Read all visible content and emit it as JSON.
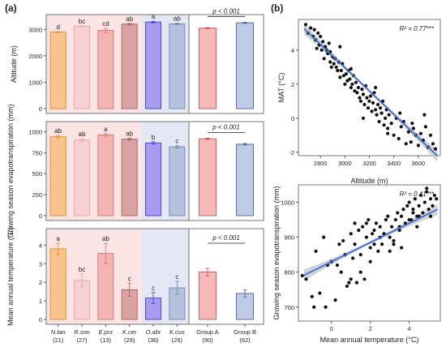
{
  "panel_labels": {
    "a": "(a)",
    "b": "(b)"
  },
  "colors": {
    "bg_red": "#fbe4e4",
    "bg_blue": "#e4e7f4",
    "bar_fills": [
      "#f9c38e",
      "#f8d0d0",
      "#f3b5b2",
      "#d9a3a3",
      "#a99af2",
      "#b5c2dc",
      "#f6b8b8",
      "#c0cbe8"
    ],
    "bar_strokes": [
      "#e08a2a",
      "#e6a3a3",
      "#d27270",
      "#a85a5a",
      "#4a36d6",
      "#6f85ad",
      "#d05050",
      "#4c62a3"
    ],
    "regression_line": "#3d6fd4",
    "ci_band": "#c8c8c8"
  },
  "chart_data": [
    {
      "type": "bar",
      "ylabel": "Altitude (m)",
      "categories": [
        "N.tan",
        "R.son",
        "E.prz",
        "K.cer",
        "O.abr",
        "K.cus",
        "Group A",
        "Group B"
      ],
      "values": [
        2900,
        3120,
        2960,
        3200,
        3280,
        3210,
        3050,
        3250
      ],
      "errors": [
        15,
        15,
        80,
        30,
        30,
        30,
        20,
        25
      ],
      "letters": [
        "d",
        "bc",
        "cd",
        "ab",
        "a",
        "ab",
        "",
        ""
      ],
      "ylim": [
        0,
        3500
      ],
      "yticks": [
        "0",
        "1000",
        "2000",
        "3000"
      ],
      "ytick_values": [
        0,
        1000,
        2000,
        3000
      ],
      "pvalue": "p < 0.001"
    },
    {
      "type": "bar",
      "ylabel": "Growing season evapotranspiration (mm)",
      "categories": [
        "N.tan",
        "R.son",
        "E.prz",
        "K.cer",
        "O.abr",
        "K.cus",
        "Group A",
        "Group B"
      ],
      "values": [
        940,
        900,
        960,
        910,
        865,
        820,
        915,
        850
      ],
      "errors": [
        15,
        15,
        15,
        12,
        15,
        15,
        8,
        10
      ],
      "letters": [
        "ab",
        "ab",
        "a",
        "ab",
        "b",
        "c",
        "",
        ""
      ],
      "ylim": [
        0,
        1100
      ],
      "yticks": [
        "0",
        "250",
        "500",
        "750",
        "1000"
      ],
      "ytick_values": [
        0,
        250,
        500,
        750,
        1000
      ],
      "pvalue": "p < 0.001"
    },
    {
      "type": "bar",
      "ylabel": "Mean annual temperature (°C)",
      "categories": [
        "N.tan",
        "R.son",
        "E.prz",
        "K.cer",
        "O.abr",
        "K.cus",
        "Group A",
        "Group B"
      ],
      "values": [
        3.8,
        2.1,
        3.55,
        1.6,
        1.15,
        1.7,
        2.55,
        1.4
      ],
      "errors": [
        0.3,
        0.35,
        0.55,
        0.35,
        0.3,
        0.35,
        0.2,
        0.2
      ],
      "letters": [
        "a",
        "bc",
        "ab",
        "c",
        "c",
        "c",
        "",
        ""
      ],
      "ylim": [
        0,
        4.8
      ],
      "yticks": [
        "0",
        "1",
        "2",
        "3",
        "4"
      ],
      "ytick_values": [
        0,
        1,
        2,
        3,
        4
      ],
      "pvalue": "p < 0.001",
      "xlabels": [
        {
          "name": "N.tan",
          "n": "(21)"
        },
        {
          "name": "R.son",
          "n": "(27)"
        },
        {
          "name": "E.prz",
          "n": "(13)"
        },
        {
          "name": "K.cer",
          "n": "(29)"
        },
        {
          "name": "O.abr",
          "n": "(36)"
        },
        {
          "name": "K.cus",
          "n": "(26)"
        },
        {
          "name": "Group A",
          "n": "(90)"
        },
        {
          "name": "Group B",
          "n": "(62)"
        }
      ]
    },
    {
      "type": "scatter",
      "xlabel": "Altitude (m)",
      "ylabel": "MAT (°C)",
      "r2": "R² = 0.77***",
      "xlim": [
        2620,
        3780
      ],
      "ylim": [
        -2.2,
        5.8
      ],
      "xticks": [
        "2800",
        "3000",
        "3200",
        "3400",
        "3600"
      ],
      "xtick_values": [
        2800,
        3000,
        3200,
        3400,
        3600
      ],
      "yticks": [
        "-2",
        "0",
        "2",
        "4"
      ],
      "ytick_values": [
        -2,
        0,
        2,
        4
      ],
      "fit": {
        "slope": -0.00686,
        "intercept": 23.55
      },
      "x": [
        2680,
        2700,
        2720,
        2740,
        2750,
        2760,
        2780,
        2790,
        2800,
        2810,
        2820,
        2830,
        2840,
        2850,
        2860,
        2870,
        2880,
        2890,
        2900,
        2910,
        2920,
        2930,
        2940,
        2950,
        2960,
        2970,
        2980,
        2990,
        3000,
        3010,
        3020,
        3030,
        3040,
        3050,
        3060,
        3070,
        3080,
        3090,
        3100,
        3110,
        3120,
        3130,
        3140,
        3150,
        3160,
        3170,
        3180,
        3190,
        3200,
        3210,
        3220,
        3230,
        3240,
        3250,
        3260,
        3270,
        3280,
        3290,
        3300,
        3310,
        3320,
        3330,
        3340,
        3350,
        3360,
        3380,
        3400,
        3420,
        3440,
        3460,
        3480,
        3500,
        3520,
        3540,
        3560,
        3580,
        3600,
        3620,
        3640,
        3660,
        3680,
        3700,
        3720,
        3740,
        2770,
        2880,
        2960,
        3050,
        3150,
        3250,
        3350,
        3450,
        3550,
        3650
      ],
      "y": [
        5.5,
        5.0,
        5.3,
        4.8,
        5.2,
        4.6,
        5.0,
        4.3,
        4.8,
        4.0,
        4.5,
        3.5,
        4.2,
        4.0,
        3.8,
        4.4,
        3.9,
        3.0,
        3.6,
        3.2,
        3.5,
        3.0,
        2.8,
        3.3,
        2.4,
        2.8,
        3.2,
        2.5,
        2.0,
        2.6,
        2.2,
        2.8,
        2.3,
        1.8,
        2.0,
        2.5,
        1.6,
        2.1,
        1.5,
        1.8,
        1.2,
        1.0,
        1.7,
        1.4,
        0.8,
        1.9,
        1.2,
        0.6,
        1.0,
        1.3,
        0.4,
        0.9,
        1.5,
        0.5,
        0.2,
        0.8,
        -0.2,
        0.6,
        0.3,
        1.0,
        -0.4,
        0.0,
        0.5,
        -0.6,
        0.2,
        -0.3,
        -1.0,
        0.0,
        -1.2,
        -0.5,
        -0.2,
        -1.5,
        -0.8,
        -1.4,
        -0.6,
        -1.0,
        -1.6,
        -0.9,
        -1.3,
        -0.5,
        -1.7,
        -1.0,
        -1.5,
        -1.8,
        4.1,
        3.3,
        4.2,
        2.9,
        0.0,
        1.8,
        -0.9,
        0.3,
        -0.3,
        0.2
      ]
    },
    {
      "type": "scatter",
      "xlabel": "Mean annual temperature (°C)",
      "ylabel": "Growing season evapotranspiration (mm)",
      "r2": "R² = 0.41***",
      "xlim": [
        -1.7,
        5.6
      ],
      "ylim": [
        660,
        1050
      ],
      "xticks": [
        "0",
        "2",
        "4"
      ],
      "xtick_values": [
        0,
        2,
        4
      ],
      "yticks": [
        "700",
        "800",
        "900",
        "1000"
      ],
      "ytick_values": [
        700,
        800,
        900,
        1000
      ],
      "fit": {
        "slope": 27.5,
        "intercept": 830
      },
      "x": [
        -1.5,
        -1.3,
        -1.0,
        -0.9,
        -0.8,
        -0.6,
        -0.4,
        -0.2,
        0.0,
        0.2,
        0.4,
        0.5,
        0.6,
        0.8,
        1.0,
        1.1,
        1.2,
        1.3,
        1.4,
        1.5,
        1.6,
        1.7,
        1.8,
        1.9,
        2.0,
        2.1,
        2.2,
        2.3,
        2.4,
        2.5,
        2.6,
        2.7,
        2.8,
        2.9,
        3.0,
        3.1,
        3.2,
        3.3,
        3.4,
        3.5,
        3.6,
        3.7,
        3.8,
        3.9,
        4.0,
        4.1,
        4.2,
        4.3,
        4.4,
        4.5,
        4.6,
        4.7,
        4.8,
        4.9,
        5.0,
        5.1,
        5.2,
        5.3,
        5.4,
        1.0,
        1.5,
        2.0,
        2.5,
        3.0,
        3.5,
        4.0,
        4.5,
        0.3,
        0.9,
        1.8,
        2.7,
        3.6,
        4.4,
        4.9,
        5.1,
        1.2,
        2.2,
        3.2,
        4.2,
        -0.3,
        0.7
      ],
      "y": [
        790,
        780,
        730,
        700,
        860,
        740,
        900,
        820,
        830,
        720,
        880,
        800,
        890,
        760,
        910,
        840,
        940,
        770,
        920,
        850,
        930,
        780,
        900,
        950,
        870,
        910,
        920,
        940,
        860,
        930,
        880,
        910,
        950,
        960,
        900,
        930,
        880,
        950,
        970,
        920,
        960,
        980,
        940,
        990,
        1000,
        950,
        980,
        1010,
        960,
        990,
        1020,
        970,
        1000,
        1040,
        980,
        1010,
        990,
        1020,
        1010,
        780,
        800,
        830,
        900,
        860,
        930,
        950,
        960,
        820,
        770,
        940,
        910,
        870,
        930,
        1030,
        960,
        880,
        880,
        890,
        970,
        700,
        850
      ]
    }
  ]
}
